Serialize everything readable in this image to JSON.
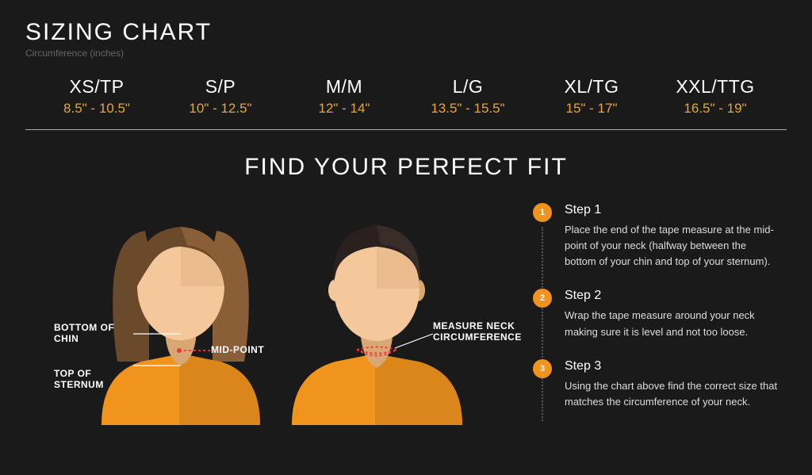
{
  "colors": {
    "background": "#1a1a1a",
    "text_primary": "#ffffff",
    "text_muted": "#666666",
    "accent_yellow": "#e8a62e",
    "accent_orange": "#f0941d",
    "shirt_orange": "#f0941d",
    "shirt_shadow": "#c97a18",
    "skin": "#f5c89b",
    "skin_shadow": "#d9a774",
    "hair_brown": "#6b4a2c",
    "hair_brown_light": "#8a5f37",
    "hair_dark": "#2a2020",
    "red_line": "#e83a3a",
    "divider": "#aaaaaa"
  },
  "typography": {
    "title_size": 30,
    "subtitle_size": 12,
    "size_label_size": 23,
    "size_range_size": 17,
    "step_title_size": 16,
    "step_body_size": 13,
    "annotation_size": 12
  },
  "header": {
    "title": "SIZING CHART",
    "subtitle": "Circumference (inches)"
  },
  "sizes": [
    {
      "label": "XS/TP",
      "range": "8.5\" - 10.5\""
    },
    {
      "label": "S/P",
      "range": "10\" - 12.5\""
    },
    {
      "label": "M/M",
      "range": "12\" - 14\""
    },
    {
      "label": "L/G",
      "range": "13.5\" - 15.5\""
    },
    {
      "label": "XL/TG",
      "range": "15\" - 17\""
    },
    {
      "label": "XXL/TTG",
      "range": "16.5\" - 19\""
    }
  ],
  "fit_title": "FIND YOUR PERFECT FIT",
  "female_annotations": {
    "bottom_of_chin": "BOTTOM OF\nCHIN",
    "mid_point": "MID-POINT",
    "top_of_sternum": "TOP OF\nSTERNUM"
  },
  "male_annotations": {
    "measure": "MEASURE NECK\nCIRCUMFERENCE"
  },
  "steps": [
    {
      "num": "1",
      "title": "Step 1",
      "body": "Place the end of the tape measure at the mid-point of your neck (halfway between the bottom of your chin and top of your sternum)."
    },
    {
      "num": "2",
      "title": "Step 2",
      "body": "Wrap the tape measure around your neck making sure it is level and not too loose."
    },
    {
      "num": "3",
      "title": "Step 3",
      "body": "Using the chart above find the correct size that matches the circumference of your neck."
    }
  ]
}
